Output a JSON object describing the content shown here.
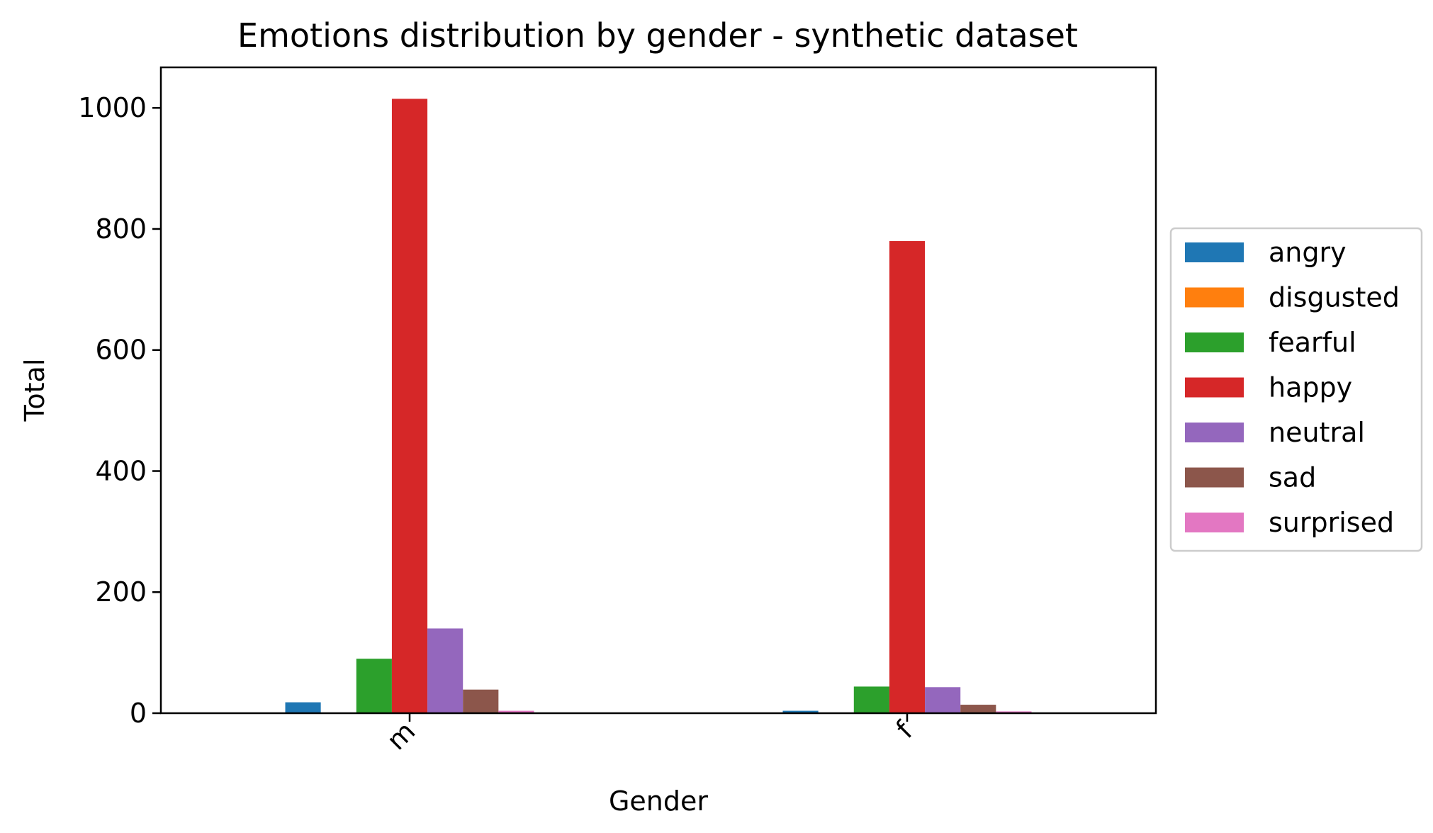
{
  "chart_data": {
    "type": "bar",
    "title": "Emotions distribution by gender - synthetic dataset",
    "xlabel": "Gender",
    "ylabel": "Total",
    "categories": [
      "m",
      "f"
    ],
    "ylim": [
      0,
      1067
    ],
    "yticks": [
      0,
      200,
      400,
      600,
      800,
      1000
    ],
    "grid": false,
    "legend_position": "center-right (outside plot)",
    "series": [
      {
        "name": "angry",
        "color": "#1f77b4",
        "values": [
          18,
          4
        ]
      },
      {
        "name": "disgusted",
        "color": "#ff7f0e",
        "values": [
          0,
          0
        ]
      },
      {
        "name": "fearful",
        "color": "#2ca02c",
        "values": [
          90,
          44
        ]
      },
      {
        "name": "happy",
        "color": "#d62728",
        "values": [
          1015,
          780
        ]
      },
      {
        "name": "neutral",
        "color": "#9467bd",
        "values": [
          140,
          43
        ]
      },
      {
        "name": "sad",
        "color": "#8c564b",
        "values": [
          39,
          14
        ]
      },
      {
        "name": "surprised",
        "color": "#e377c2",
        "values": [
          4,
          3
        ]
      }
    ]
  }
}
